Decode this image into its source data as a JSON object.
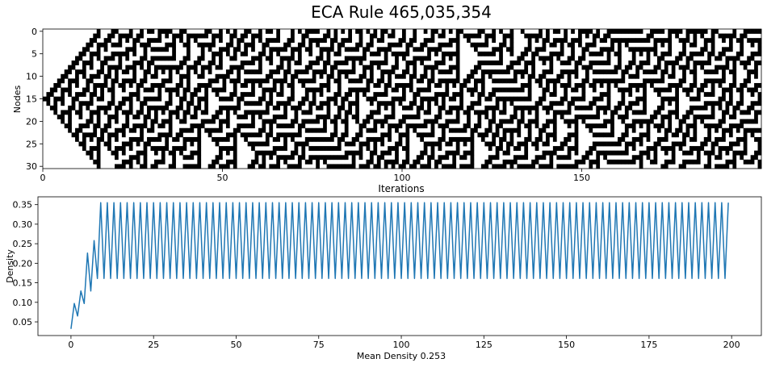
{
  "figure": {
    "title": "ECA Rule 465,035,354"
  },
  "chart_data": [
    {
      "type": "heatmap",
      "name": "spacetime",
      "title": "ECA Rule 465,035,354",
      "xlabel": "Iterations",
      "ylabel": "Nodes",
      "rows": 31,
      "cols": 200,
      "xlim": [
        0,
        200
      ],
      "ylim": [
        30,
        0
      ],
      "xticks": [
        0,
        50,
        100,
        150
      ],
      "yticks": [
        0,
        5,
        10,
        15,
        20,
        25,
        30
      ],
      "initial_active_node": 15,
      "colors": {
        "on": "#000000",
        "off": "#ffffff"
      }
    },
    {
      "type": "line",
      "name": "density",
      "xlabel": "Mean Density 0.253",
      "ylabel": "Density",
      "xlim": [
        -10,
        209
      ],
      "ylim": [
        0.015,
        0.37
      ],
      "xticks": [
        0,
        25,
        50,
        75,
        100,
        125,
        150,
        175,
        200
      ],
      "yticks": [
        0.05,
        0.1,
        0.15,
        0.2,
        0.25,
        0.3,
        0.35
      ],
      "ytick_labels": [
        "0.05",
        "0.10",
        "0.15",
        "0.20",
        "0.25",
        "0.30",
        "0.35"
      ],
      "initial_values": [
        0.032,
        0.097,
        0.065,
        0.129,
        0.097,
        0.226,
        0.129,
        0.258,
        0.161,
        0.355
      ],
      "alternating_values": [
        0.161,
        0.355
      ],
      "length": 200,
      "mean_density": 0.253,
      "line_color": "#1f77b4"
    }
  ]
}
